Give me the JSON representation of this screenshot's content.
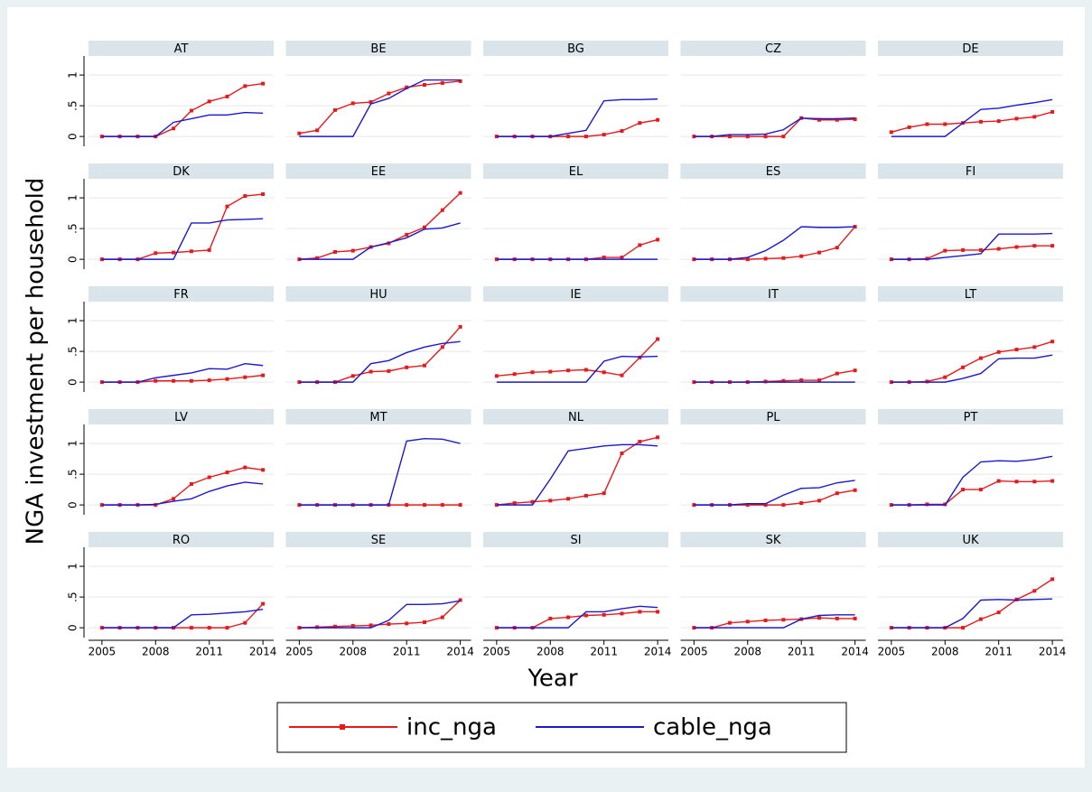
{
  "chart_data": {
    "type": "line",
    "y_label": "NGA investment per household",
    "x_label": "Year",
    "x": [
      2005,
      2006,
      2007,
      2008,
      2009,
      2010,
      2011,
      2012,
      2013,
      2014
    ],
    "xlim": [
      2004.25,
      2014.6
    ],
    "ylim": [
      -0.16,
      1.31
    ],
    "xticks": [
      2005,
      2008,
      2011,
      2014
    ],
    "yticks": [
      0,
      {
        "value": 0.5,
        "label": ".5"
      },
      1
    ],
    "grid": true,
    "legend_position": "bottom",
    "series": [
      {
        "name": "inc_nga",
        "color": "#e41a1c",
        "marker": "square"
      },
      {
        "name": "cable_nga",
        "color": "#1a1acc",
        "marker": "none"
      }
    ],
    "panels": [
      {
        "title": "AT",
        "series": [
          {
            "values": [
              0,
              0,
              0,
              0,
              0.13,
              0.42,
              0.57,
              0.65,
              0.82,
              0.86
            ]
          },
          {
            "values": [
              0,
              0,
              0,
              0,
              0.23,
              0.29,
              0.35,
              0.35,
              0.39,
              0.38
            ]
          }
        ]
      },
      {
        "title": "BE",
        "series": [
          {
            "values": [
              0.05,
              0.1,
              0.43,
              0.54,
              0.56,
              0.7,
              0.8,
              0.84,
              0.87,
              0.9
            ]
          },
          {
            "values": [
              0,
              0,
              0,
              0,
              0.53,
              0.62,
              0.78,
              0.92,
              0.92,
              0.92
            ]
          }
        ]
      },
      {
        "title": "BG",
        "series": [
          {
            "values": [
              0,
              0,
              0,
              0,
              0,
              0,
              0.03,
              0.09,
              0.22,
              0.27
            ]
          },
          {
            "values": [
              0,
              0,
              0,
              0,
              0.05,
              0.1,
              0.58,
              0.6,
              0.6,
              0.61
            ]
          }
        ]
      },
      {
        "title": "CZ",
        "series": [
          {
            "values": [
              0,
              0,
              0,
              0,
              0,
              0,
              0.3,
              0.27,
              0.27,
              0.28
            ]
          },
          {
            "values": [
              0,
              0,
              0.03,
              0.03,
              0.04,
              0.11,
              0.3,
              0.29,
              0.29,
              0.3
            ]
          }
        ]
      },
      {
        "title": "DE",
        "series": [
          {
            "values": [
              0.07,
              0.15,
              0.2,
              0.2,
              0.22,
              0.24,
              0.25,
              0.29,
              0.32,
              0.4
            ]
          },
          {
            "values": [
              0,
              0,
              0,
              0,
              0.22,
              0.44,
              0.46,
              0.51,
              0.55,
              0.6
            ]
          }
        ]
      },
      {
        "title": "DK",
        "series": [
          {
            "values": [
              0,
              0,
              0,
              0.1,
              0.11,
              0.13,
              0.15,
              0.86,
              1.03,
              1.06
            ]
          },
          {
            "values": [
              0,
              0,
              0,
              0,
              0,
              0.59,
              0.59,
              0.64,
              0.65,
              0.66
            ]
          }
        ]
      },
      {
        "title": "EE",
        "series": [
          {
            "values": [
              0,
              0.02,
              0.12,
              0.14,
              0.2,
              0.26,
              0.4,
              0.52,
              0.8,
              1.08
            ]
          },
          {
            "values": [
              0,
              0,
              0,
              0,
              0.2,
              0.27,
              0.35,
              0.49,
              0.51,
              0.59
            ]
          }
        ]
      },
      {
        "title": "EL",
        "series": [
          {
            "values": [
              0,
              0,
              0,
              0,
              0,
              0,
              0.03,
              0.03,
              0.23,
              0.32
            ]
          },
          {
            "values": [
              0,
              0,
              0,
              0,
              0,
              0,
              0,
              0,
              0,
              0
            ]
          }
        ]
      },
      {
        "title": "ES",
        "series": [
          {
            "values": [
              0,
              0,
              0,
              0,
              0.01,
              0.02,
              0.05,
              0.11,
              0.19,
              0.53
            ]
          },
          {
            "values": [
              0,
              0,
              0,
              0.03,
              0.14,
              0.31,
              0.53,
              0.52,
              0.52,
              0.53
            ]
          }
        ]
      },
      {
        "title": "FI",
        "series": [
          {
            "values": [
              0,
              0,
              0.01,
              0.14,
              0.15,
              0.15,
              0.17,
              0.2,
              0.22,
              0.22
            ]
          },
          {
            "values": [
              0,
              0,
              0,
              0.03,
              0.06,
              0.09,
              0.41,
              0.41,
              0.41,
              0.42
            ]
          }
        ]
      },
      {
        "title": "FR",
        "series": [
          {
            "values": [
              0,
              0,
              0,
              0.02,
              0.02,
              0.02,
              0.03,
              0.05,
              0.08,
              0.11
            ]
          },
          {
            "values": [
              0,
              0,
              0,
              0.07,
              0.11,
              0.15,
              0.22,
              0.21,
              0.3,
              0.27
            ]
          }
        ]
      },
      {
        "title": "HU",
        "series": [
          {
            "values": [
              0,
              0,
              0,
              0.1,
              0.17,
              0.18,
              0.24,
              0.27,
              0.57,
              0.9
            ]
          },
          {
            "values": [
              0,
              0,
              0,
              0,
              0.3,
              0.35,
              0.48,
              0.57,
              0.63,
              0.66
            ]
          }
        ]
      },
      {
        "title": "IE",
        "series": [
          {
            "values": [
              0.1,
              0.13,
              0.16,
              0.17,
              0.19,
              0.2,
              0.16,
              0.11,
              0.4,
              0.7
            ]
          },
          {
            "values": [
              0,
              0,
              0,
              0,
              0,
              0,
              0.34,
              0.42,
              0.41,
              0.42
            ]
          }
        ]
      },
      {
        "title": "IT",
        "series": [
          {
            "values": [
              0,
              0,
              0,
              0,
              0.01,
              0.02,
              0.03,
              0.03,
              0.14,
              0.19
            ]
          },
          {
            "values": [
              0,
              0,
              0,
              0,
              0,
              0,
              0,
              0,
              0,
              0
            ]
          }
        ]
      },
      {
        "title": "LT",
        "series": [
          {
            "values": [
              0,
              0,
              0.01,
              0.08,
              0.24,
              0.39,
              0.49,
              0.53,
              0.57,
              0.66
            ]
          },
          {
            "values": [
              0,
              0,
              0,
              0,
              0.06,
              0.14,
              0.38,
              0.39,
              0.39,
              0.44
            ]
          }
        ]
      },
      {
        "title": "LV",
        "series": [
          {
            "values": [
              0,
              0,
              0,
              0,
              0.1,
              0.34,
              0.45,
              0.53,
              0.61,
              0.57
            ]
          },
          {
            "values": [
              0,
              0,
              0,
              0.01,
              0.06,
              0.1,
              0.22,
              0.31,
              0.37,
              0.34
            ]
          }
        ]
      },
      {
        "title": "MT",
        "series": [
          {
            "values": [
              0,
              0,
              0,
              0,
              0,
              0,
              0,
              0,
              0,
              0
            ]
          },
          {
            "values": [
              0,
              0,
              0,
              0,
              0,
              0,
              1.04,
              1.08,
              1.07,
              1.0
            ]
          }
        ]
      },
      {
        "title": "NL",
        "series": [
          {
            "values": [
              0,
              0.03,
              0.05,
              0.07,
              0.1,
              0.15,
              0.19,
              0.84,
              1.03,
              1.1
            ]
          },
          {
            "values": [
              0,
              0,
              0,
              0.42,
              0.88,
              0.92,
              0.96,
              0.98,
              0.98,
              0.96
            ]
          }
        ]
      },
      {
        "title": "PL",
        "series": [
          {
            "values": [
              0,
              0,
              0,
              0,
              0,
              0,
              0.03,
              0.07,
              0.19,
              0.24
            ]
          },
          {
            "values": [
              0,
              0,
              0,
              0.02,
              0.02,
              0.16,
              0.27,
              0.28,
              0.36,
              0.4
            ]
          }
        ]
      },
      {
        "title": "PT",
        "series": [
          {
            "values": [
              0,
              0,
              0.01,
              0.01,
              0.25,
              0.25,
              0.39,
              0.38,
              0.38,
              0.39
            ]
          },
          {
            "values": [
              0,
              0,
              0,
              0,
              0.45,
              0.7,
              0.72,
              0.71,
              0.74,
              0.79
            ]
          }
        ]
      },
      {
        "title": "RO",
        "series": [
          {
            "values": [
              0,
              0,
              0,
              0,
              0,
              0,
              0,
              0,
              0.08,
              0.39
            ]
          },
          {
            "values": [
              0,
              0,
              0,
              0,
              0,
              0.21,
              0.22,
              0.24,
              0.26,
              0.3
            ]
          }
        ]
      },
      {
        "title": "SE",
        "series": [
          {
            "values": [
              0,
              0.01,
              0.02,
              0.03,
              0.04,
              0.06,
              0.07,
              0.09,
              0.17,
              0.45
            ]
          },
          {
            "values": [
              0,
              0,
              0,
              0,
              0,
              0.12,
              0.38,
              0.38,
              0.39,
              0.44
            ]
          }
        ]
      },
      {
        "title": "SI",
        "series": [
          {
            "values": [
              0,
              0,
              0,
              0.15,
              0.17,
              0.2,
              0.21,
              0.23,
              0.26,
              0.26
            ]
          },
          {
            "values": [
              0,
              0,
              0,
              0,
              0,
              0.26,
              0.26,
              0.31,
              0.35,
              0.33
            ]
          }
        ]
      },
      {
        "title": "SK",
        "series": [
          {
            "values": [
              0,
              0,
              0.08,
              0.1,
              0.12,
              0.13,
              0.14,
              0.16,
              0.15,
              0.15
            ]
          },
          {
            "values": [
              0,
              0,
              0,
              0,
              0,
              0,
              0.14,
              0.2,
              0.21,
              0.21
            ]
          }
        ]
      },
      {
        "title": "UK",
        "series": [
          {
            "values": [
              0,
              0,
              0,
              0,
              0,
              0.14,
              0.25,
              0.46,
              0.6,
              0.79
            ]
          },
          {
            "values": [
              0,
              0,
              0,
              0,
              0.15,
              0.45,
              0.46,
              0.45,
              0.46,
              0.47
            ]
          }
        ]
      }
    ]
  }
}
